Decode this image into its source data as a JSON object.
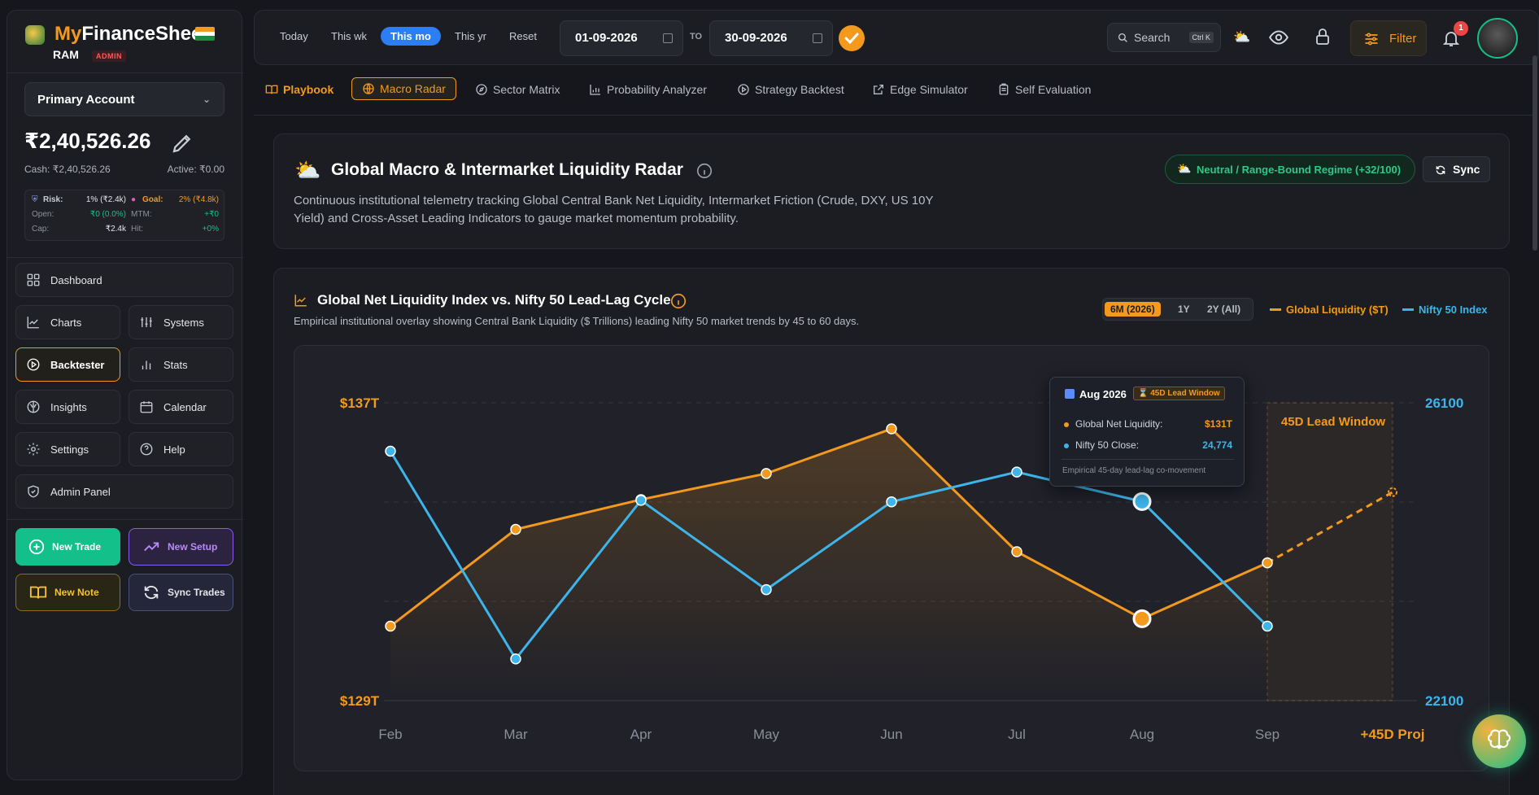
{
  "brand": {
    "name_part1": "My",
    "name_part2": "FinanceSheet",
    "user": "RAM",
    "role": "ADMIN"
  },
  "account": {
    "selected": "Primary Account",
    "balance": "₹2,40,526.26",
    "cash": "Cash: ₹2,40,526.26",
    "active": "Active: ₹0.00",
    "risk_label": "Risk:",
    "risk_value": "1% (₹2.4k)",
    "goal_label": "Goal:",
    "goal_value": "2% (₹4.8k)",
    "open_label": "Open:",
    "open_value": "₹0 (0.0%)",
    "mtm_label": "MTM:",
    "mtm_value": "+₹0",
    "cap_label": "Cap:",
    "cap_value": "₹2.4k",
    "hit_label": "Hit:",
    "hit_value": "+0%"
  },
  "nav": {
    "dashboard": "Dashboard",
    "charts": "Charts",
    "systems": "Systems",
    "backtester": "Backtester",
    "stats": "Stats",
    "insights": "Insights",
    "calendar": "Calendar",
    "settings": "Settings",
    "help": "Help",
    "admin_panel": "Admin Panel"
  },
  "actions": {
    "new_trade": "New Trade",
    "new_setup": "New Setup",
    "new_note": "New Note",
    "sync_trades": "Sync Trades"
  },
  "topbar": {
    "ranges": [
      "Today",
      "This wk",
      "This mo",
      "This yr",
      "Reset"
    ],
    "active_range": "This mo",
    "date_from": "01-09-2026",
    "to_label": "TO",
    "date_to": "30-09-2026",
    "search_placeholder": "Search",
    "search_shortcut": "Ctrl K",
    "filter_label": "Filter",
    "notification_count": "1"
  },
  "tabs": [
    "Playbook",
    "Macro Radar",
    "Sector Matrix",
    "Probability Analyzer",
    "Strategy Backtest",
    "Edge Simulator",
    "Self Evaluation"
  ],
  "active_tab": "Macro Radar",
  "header_card": {
    "title": "Global Macro & Intermarket Liquidity Radar",
    "regime": "Neutral / Range-Bound Regime (+32/100)",
    "sync_label": "Sync",
    "description_line1": "Continuous institutional telemetry tracking Global Central Bank Net Liquidity, Intermarket Friction (Crude, DXY, US 10Y",
    "description_line2": "Yield) and Cross-Asset Leading Indicators to gauge market momentum probability."
  },
  "chart_card": {
    "title": "Global Net Liquidity Index vs. Nifty 50 Lead-Lag Cycle",
    "subtitle": "Empirical institutional overlay showing Central Bank Liquidity ($ Trillions) leading Nifty 50 market trends by 45 to 60 days.",
    "periods": [
      "6M (2026)",
      "1Y",
      "2Y (All)"
    ],
    "active_period": "6M (2026)",
    "legend_liquidity": "Global Liquidity ($T)",
    "legend_nifty": "Nifty 50 Index",
    "lead_window_label": "45D Lead Window",
    "tooltip": {
      "month": "Aug 2026",
      "badge": "45D Lead Window",
      "liquidity_label": "Global Net Liquidity:",
      "liquidity_value": "$131T",
      "nifty_label": "Nifty 50 Close:",
      "nifty_value": "24,774",
      "footer": "Empirical 45-day lead-lag co-movement"
    }
  },
  "colors": {
    "accent": "#f39a1e",
    "nifty": "#3db5ea",
    "green": "#14c08a",
    "blue": "#2c7ef5"
  },
  "chart_data": {
    "type": "line",
    "categories": [
      "Feb",
      "Mar",
      "Apr",
      "May",
      "Jun",
      "Jul",
      "Aug",
      "Sep",
      "+45D Proj"
    ],
    "left_axis": {
      "min_label": "$129T",
      "max_label": "$137T",
      "range": [
        129,
        137
      ]
    },
    "right_axis": {
      "min_label": "22100",
      "max_label": "26100",
      "range": [
        22100,
        26100
      ]
    },
    "series": [
      {
        "name": "Global Liquidity ($T)",
        "axis": "left",
        "values": [
          131.0,
          133.6,
          134.4,
          135.1,
          136.3,
          133.0,
          131.2,
          132.7,
          134.6
        ]
      },
      {
        "name": "Nifty 50 Index",
        "axis": "right",
        "values": [
          25450,
          22660,
          24790,
          23590,
          24770,
          25170,
          24774,
          23100,
          null
        ]
      }
    ],
    "projection_from_index": 7,
    "highlight_index": 6
  }
}
